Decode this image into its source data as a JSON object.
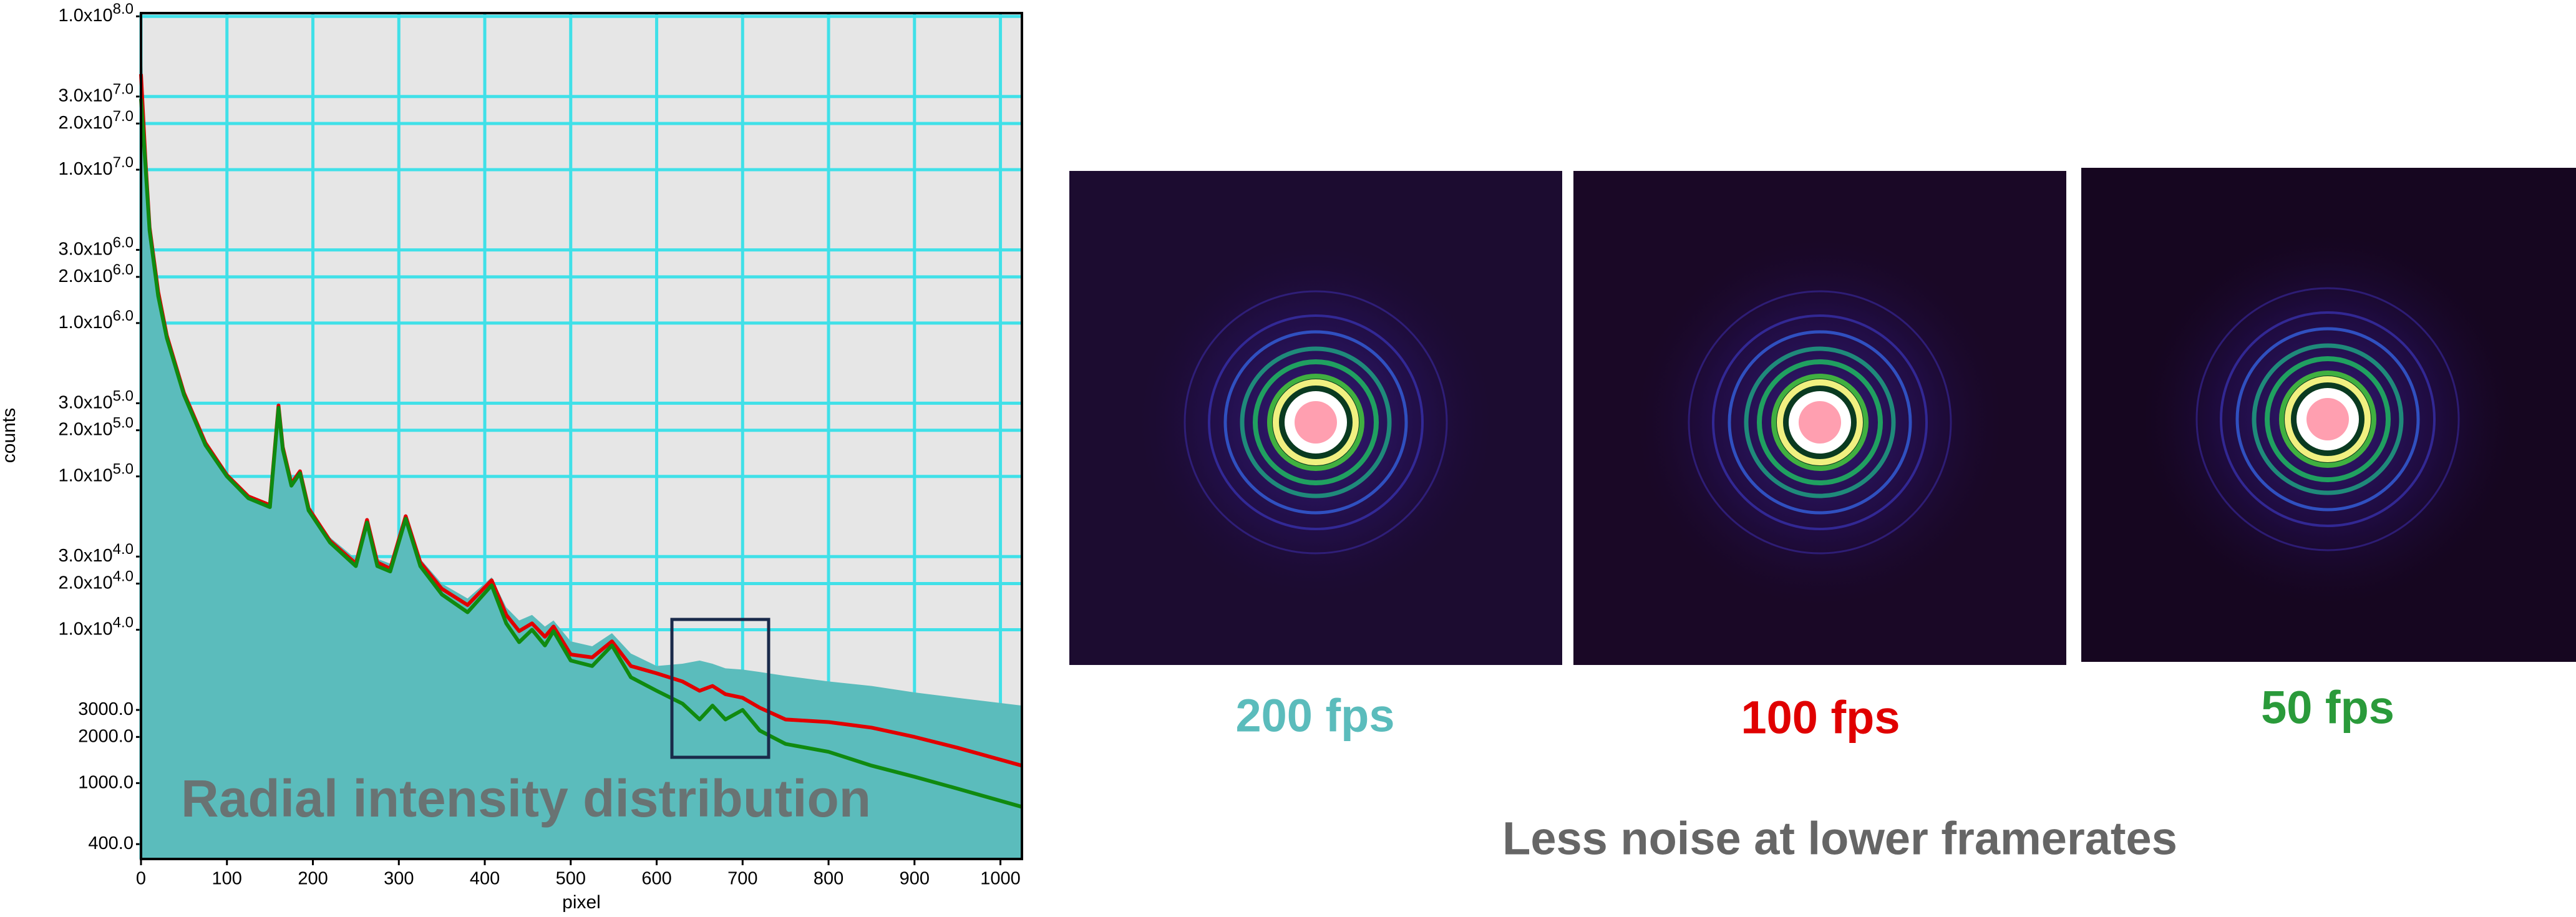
{
  "chart_data": {
    "type": "line",
    "title": "Radial intensity distribution",
    "xlabel": "pixel",
    "ylabel": "counts",
    "annotation": "Less noise at lower framerates",
    "log_y": true,
    "grid": true,
    "xlim": [
      0,
      1025
    ],
    "xticks": [
      0,
      100,
      200,
      300,
      400,
      500,
      600,
      700,
      800,
      900,
      1000
    ],
    "ylim": [
      320,
      105000000
    ],
    "yticks": [
      {
        "value": 100000000,
        "label": "1.0x10",
        "exponent": "8.0"
      },
      {
        "value": 30000000,
        "label": "3.0x10",
        "exponent": "7.0"
      },
      {
        "value": 20000000,
        "label": "2.0x10",
        "exponent": "7.0"
      },
      {
        "value": 10000000,
        "label": "1.0x10",
        "exponent": "7.0"
      },
      {
        "value": 3000000,
        "label": "3.0x10",
        "exponent": "6.0"
      },
      {
        "value": 2000000,
        "label": "2.0x10",
        "exponent": "6.0"
      },
      {
        "value": 1000000,
        "label": "1.0x10",
        "exponent": "6.0"
      },
      {
        "value": 300000,
        "label": "3.0x10",
        "exponent": "5.0"
      },
      {
        "value": 200000,
        "label": "2.0x10",
        "exponent": "5.0"
      },
      {
        "value": 100000,
        "label": "1.0x10",
        "exponent": "5.0"
      },
      {
        "value": 30000,
        "label": "3.0x10",
        "exponent": "4.0"
      },
      {
        "value": 20000,
        "label": "2.0x10",
        "exponent": "4.0"
      },
      {
        "value": 10000,
        "label": "1.0x10",
        "exponent": "4.0"
      },
      {
        "value": 3000,
        "label": "3000.0"
      },
      {
        "value": 2000,
        "label": "2000.0"
      },
      {
        "value": 1000,
        "label": "1000.0"
      },
      {
        "value": 400,
        "label": "400.0"
      }
    ],
    "x": [
      0,
      5,
      10,
      20,
      30,
      50,
      75,
      100,
      125,
      150,
      160,
      165,
      175,
      185,
      195,
      220,
      250,
      263,
      275,
      290,
      308,
      325,
      350,
      380,
      408,
      425,
      440,
      455,
      470,
      480,
      500,
      525,
      548,
      570,
      600,
      630,
      650,
      665,
      680,
      700,
      720,
      750,
      800,
      850,
      900,
      950,
      1025
    ],
    "series": [
      {
        "name": "200 fps",
        "color": "#5bbcbc",
        "fill": true,
        "values": [
          95000000,
          14000000,
          4600000,
          1700000,
          870000,
          360000,
          170000,
          105000,
          76000,
          67000,
          300000,
          160000,
          93000,
          110000,
          64000,
          40000,
          29000,
          54000,
          29000,
          27000,
          57000,
          29000,
          20000,
          16000,
          22000,
          14000,
          11500,
          12500,
          10500,
          11500,
          8400,
          7800,
          9500,
          7000,
          5800,
          6000,
          6300,
          6000,
          5600,
          5500,
          5300,
          5000,
          4600,
          4300,
          3900,
          3600,
          3200
        ]
      },
      {
        "name": "100 fps",
        "color": "#e00000",
        "values": [
          42000000,
          12000000,
          4200000,
          1600000,
          830000,
          350000,
          165000,
          102000,
          74000,
          65000,
          290000,
          155000,
          90000,
          108000,
          62000,
          38000,
          27000,
          52000,
          27500,
          25000,
          55000,
          27500,
          18500,
          14500,
          21000,
          12500,
          9800,
          11000,
          9000,
          10500,
          6900,
          6600,
          8400,
          5800,
          5200,
          4600,
          4000,
          4300,
          3800,
          3600,
          3100,
          2600,
          2500,
          2300,
          2000,
          1700,
          1300
        ]
      },
      {
        "name": "50 fps",
        "color": "#108a10",
        "values": [
          29000000,
          11000000,
          4000000,
          1500000,
          800000,
          340000,
          160000,
          100000,
          72000,
          63000,
          280000,
          150000,
          87000,
          105000,
          60000,
          37000,
          26000,
          50000,
          26000,
          24000,
          53000,
          26000,
          17000,
          13000,
          19500,
          11000,
          8300,
          10000,
          7900,
          9800,
          6300,
          5800,
          7900,
          4900,
          4000,
          3300,
          2600,
          3200,
          2600,
          3000,
          2200,
          1800,
          1600,
          1300,
          1100,
          920,
          700
        ]
      }
    ]
  }
}
